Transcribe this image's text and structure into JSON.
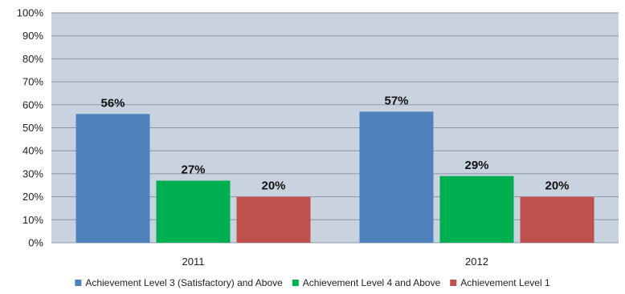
{
  "chart_data": {
    "type": "bar",
    "categories": [
      "2011",
      "2012"
    ],
    "series": [
      {
        "name": "Achievement Level 3 (Satisfactory) and Above",
        "values": [
          56,
          57
        ],
        "labels": [
          "56%",
          "57%"
        ],
        "color": "#4F81BD"
      },
      {
        "name": "Achievement Level 4 and Above",
        "values": [
          27,
          29
        ],
        "labels": [
          "27%",
          "29%"
        ],
        "color": "#00B050"
      },
      {
        "name": "Achievement Level 1",
        "values": [
          20,
          20
        ],
        "labels": [
          "20%",
          "20%"
        ],
        "color": "#C0504D"
      }
    ],
    "ylim": [
      0,
      100
    ],
    "yticks": [
      0,
      10,
      20,
      30,
      40,
      50,
      60,
      70,
      80,
      90,
      100
    ],
    "ytick_labels": [
      "0%",
      "10%",
      "20%",
      "30%",
      "40%",
      "50%",
      "60%",
      "70%",
      "80%",
      "90%",
      "100%"
    ],
    "grid": true,
    "legend": "bottom",
    "plot_background": "#C9D3DF",
    "gridline_color": "#8A96A6"
  }
}
